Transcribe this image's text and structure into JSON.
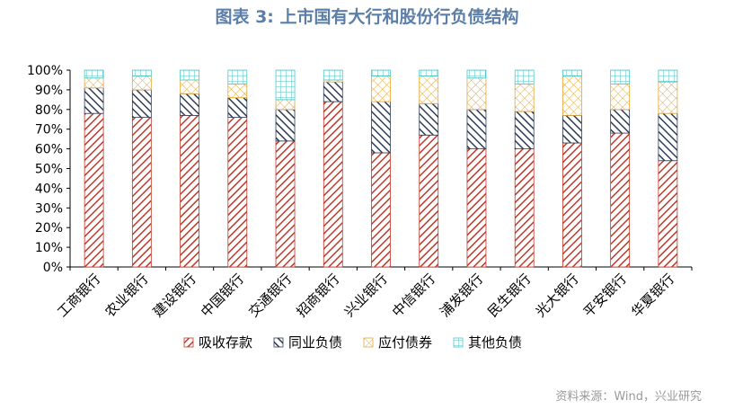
{
  "chart_data": {
    "type": "bar",
    "stacked": true,
    "title": "图表 3:  上市国有大行和股份行负债结构",
    "categories": [
      "工商银行",
      "农业银行",
      "建设银行",
      "中国银行",
      "交通银行",
      "招商银行",
      "兴业银行",
      "中信银行",
      "浦发银行",
      "民生银行",
      "光大银行",
      "平安银行",
      "华夏银行"
    ],
    "series": [
      {
        "name": "吸收存款",
        "color": "#c0392b",
        "pattern": "diagonal-red",
        "values": [
          78,
          76,
          77,
          76,
          64,
          84,
          58,
          67,
          60,
          60,
          63,
          68,
          54
        ]
      },
      {
        "name": "同业负债",
        "color": "#2e3d55",
        "pattern": "diagonal-navy",
        "values": [
          13,
          14,
          11,
          10,
          16,
          10,
          26,
          16,
          20,
          19,
          14,
          12,
          24
        ]
      },
      {
        "name": "应付债券",
        "color": "#e6a93a",
        "pattern": "crosshatch-orange",
        "values": [
          5,
          7,
          7,
          7,
          5,
          1,
          13,
          14,
          16,
          14,
          20,
          13,
          16
        ]
      },
      {
        "name": "其他负债",
        "color": "#4fc6c6",
        "pattern": "grid-cyan",
        "values": [
          4,
          3,
          5,
          7,
          15,
          5,
          3,
          3,
          4,
          7,
          3,
          7,
          6
        ]
      }
    ],
    "yticks": [
      "0%",
      "10%",
      "20%",
      "30%",
      "40%",
      "50%",
      "60%",
      "70%",
      "80%",
      "90%",
      "100%"
    ],
    "ylim": [
      0,
      100
    ],
    "grid": false,
    "legend_position": "bottom"
  },
  "source": "资料来源：Wind，兴业研究"
}
